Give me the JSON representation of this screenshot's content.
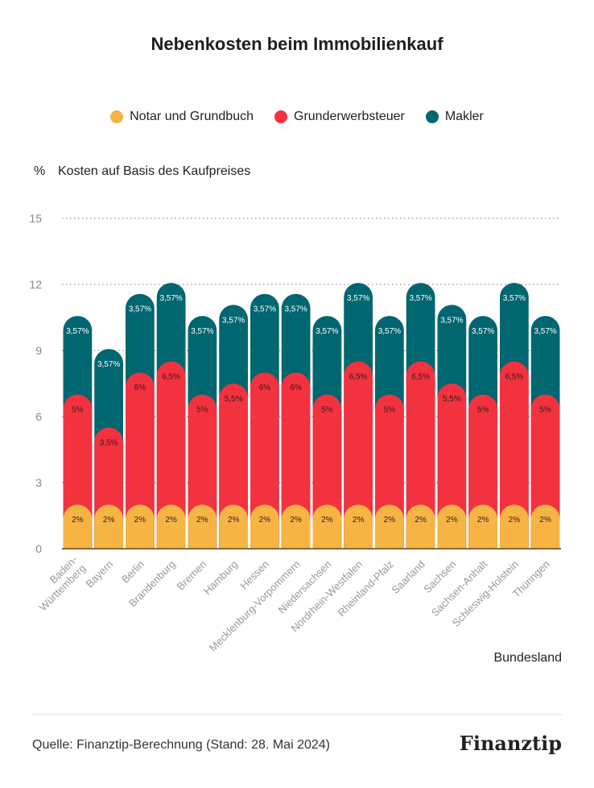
{
  "chart_data": {
    "type": "bar",
    "stacked": true,
    "title": "Nebenkosten beim Immobilienkauf",
    "ylabel": "Kosten auf Basis des Kaufpreises",
    "yunit": "%",
    "xlabel": "Bundesland",
    "ylim": [
      0,
      15
    ],
    "yticks": [
      0,
      3,
      6,
      9,
      12,
      15
    ],
    "legend_position": "top-center",
    "categories": [
      "Baden-Württemberg",
      "Bayern",
      "Berlin",
      "Brandenburg",
      "Bremen",
      "Hamburg",
      "Hessen",
      "Mecklenburg-Vorpommern",
      "Niedersachsen",
      "Nordrhein-Westfalen",
      "Rheinland-Pfalz",
      "Saarland",
      "Sachsen",
      "Sachsen-Anhalt",
      "Schleswig-Holstein",
      "Thüringen"
    ],
    "series": [
      {
        "name": "Notar und Grundbuch",
        "color": "#F6B445",
        "values": [
          2,
          2,
          2,
          2,
          2,
          2,
          2,
          2,
          2,
          2,
          2,
          2,
          2,
          2,
          2,
          2
        ],
        "labels": [
          "2%",
          "2%",
          "2%",
          "2%",
          "2%",
          "2%",
          "2%",
          "2%",
          "2%",
          "2%",
          "2%",
          "2%",
          "2%",
          "2%",
          "2%",
          "2%"
        ]
      },
      {
        "name": "Grunderwerbsteuer",
        "color": "#F2323F",
        "values": [
          5,
          3.5,
          6,
          6.5,
          5,
          5.5,
          6,
          6,
          5,
          6.5,
          5,
          6.5,
          5.5,
          5,
          6.5,
          5
        ],
        "labels": [
          "5%",
          "3,5%",
          "6%",
          "6,5%",
          "5%",
          "5,5%",
          "6%",
          "6%",
          "5%",
          "6,5%",
          "5%",
          "6,5%",
          "5,5%",
          "5%",
          "6,5%",
          "5%"
        ]
      },
      {
        "name": "Makler",
        "color": "#006670",
        "values": [
          3.57,
          3.57,
          3.57,
          3.57,
          3.57,
          3.57,
          3.57,
          3.57,
          3.57,
          3.57,
          3.57,
          3.57,
          3.57,
          3.57,
          3.57,
          3.57
        ],
        "labels": [
          "3,57%",
          "3,57%",
          "3,57%",
          "3,57%",
          "3,57%",
          "3,57%",
          "3,57%",
          "3,57%",
          "3,57%",
          "3,57%",
          "3,57%",
          "3,57%",
          "3,57%",
          "3,57%",
          "3,57%",
          "3,57%"
        ]
      }
    ]
  },
  "footer": {
    "source": "Quelle: Finanztip-Berechnung (Stand: 28. Mai 2024)",
    "logo": "Finanztip"
  }
}
